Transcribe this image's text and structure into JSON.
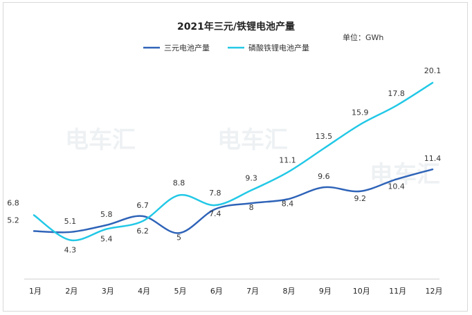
{
  "chart_data": {
    "type": "line",
    "title": "2021年三元/铁锂电池产量",
    "unit_label": "单位：GWh",
    "categories": [
      "1月",
      "2月",
      "3月",
      "4月",
      "5月",
      "6月",
      "7月",
      "8月",
      "9月",
      "10月",
      "11月",
      "12月"
    ],
    "series": [
      {
        "name": "三元电池产量",
        "color": "#2e63b8",
        "values": [
          5.2,
          5.1,
          5.8,
          6.7,
          5,
          7.4,
          8,
          8.4,
          9.6,
          9.2,
          10.4,
          11.4
        ]
      },
      {
        "name": "磷酸铁锂电池产量",
        "color": "#22c8e6",
        "values": [
          6.8,
          4.3,
          5.4,
          6.2,
          8.8,
          7.8,
          9.3,
          11.1,
          13.5,
          15.9,
          17.8,
          20.1
        ]
      }
    ],
    "ylim": [
      0,
      22
    ],
    "grid": false,
    "legend_position": "top"
  },
  "watermark": {
    "text": "电车汇"
  }
}
